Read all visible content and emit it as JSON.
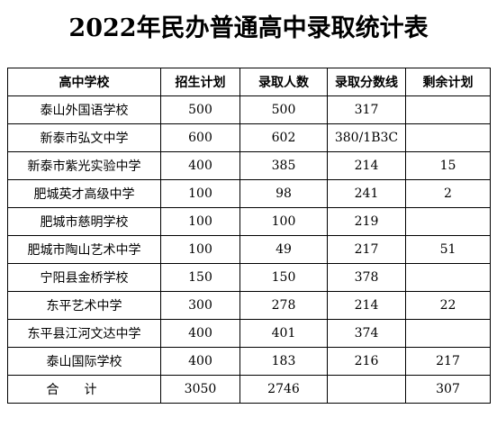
{
  "title": "2022年民办普通高中录取统计表",
  "table": {
    "headers": [
      "高中学校",
      "招生计划",
      "录取人数",
      "录取分数线",
      "剩余计划"
    ],
    "rows": [
      [
        "泰山外国语学校",
        "500",
        "500",
        "317",
        ""
      ],
      [
        "新泰市弘文中学",
        "600",
        "602",
        "380/1B3C",
        ""
      ],
      [
        "新泰市紫光实验中学",
        "400",
        "385",
        "214",
        "15"
      ],
      [
        "肥城英才高级中学",
        "100",
        "98",
        "241",
        "2"
      ],
      [
        "肥城市慈明学校",
        "100",
        "100",
        "219",
        ""
      ],
      [
        "肥城市陶山艺术中学",
        "100",
        "49",
        "217",
        "51"
      ],
      [
        "宁阳县金桥学校",
        "150",
        "150",
        "378",
        ""
      ],
      [
        "东平艺术中学",
        "300",
        "278",
        "214",
        "22"
      ],
      [
        "东平县江河文达中学",
        "400",
        "401",
        "374",
        ""
      ],
      [
        "泰山国际学校",
        "400",
        "183",
        "216",
        "217"
      ]
    ],
    "total": [
      "合计",
      "3050",
      "2746",
      "",
      "307"
    ]
  }
}
